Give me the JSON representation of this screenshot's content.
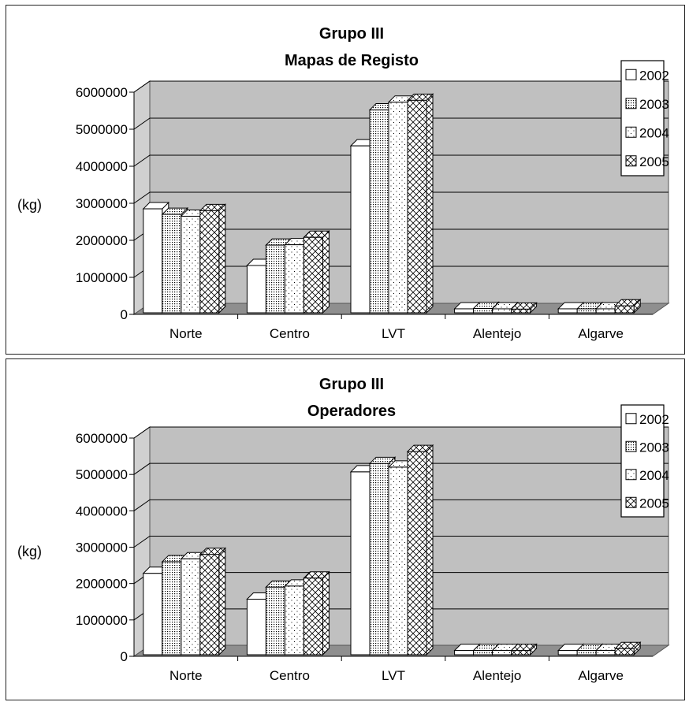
{
  "chart_data": [
    {
      "type": "bar",
      "title": "Grupo III",
      "subtitle": "Mapas de Registo",
      "ylabel": "(kg)",
      "xlabel": "",
      "ylim": [
        0,
        6000000
      ],
      "yticks": [
        "0",
        "1000000",
        "2000000",
        "3000000",
        "4000000",
        "5000000",
        "6000000"
      ],
      "categories": [
        "Norte",
        "Centro",
        "LVT",
        "Alentejo",
        "Algarve"
      ],
      "legend_position": "top-right",
      "grid": true,
      "series": [
        {
          "name": "2002",
          "pattern": "blank",
          "values": [
            2850000,
            1320000,
            4550000,
            150000,
            150000
          ]
        },
        {
          "name": "2003",
          "pattern": "dense-dots",
          "values": [
            2700000,
            1870000,
            5520000,
            160000,
            150000
          ]
        },
        {
          "name": "2004",
          "pattern": "sparse-dots",
          "values": [
            2650000,
            1880000,
            5730000,
            150000,
            150000
          ]
        },
        {
          "name": "2005",
          "pattern": "crosshatch",
          "values": [
            2800000,
            2080000,
            5780000,
            140000,
            230000
          ]
        }
      ]
    },
    {
      "type": "bar",
      "title": "Grupo III",
      "subtitle": "Operadores",
      "ylabel": "(kg)",
      "xlabel": "",
      "ylim": [
        0,
        6000000
      ],
      "yticks": [
        "0",
        "1000000",
        "2000000",
        "3000000",
        "4000000",
        "5000000",
        "6000000"
      ],
      "categories": [
        "Norte",
        "Centro",
        "LVT",
        "Alentejo",
        "Algarve"
      ],
      "legend_position": "top-right",
      "grid": true,
      "series": [
        {
          "name": "2002",
          "pattern": "blank",
          "values": [
            2280000,
            1570000,
            5070000,
            160000,
            160000
          ]
        },
        {
          "name": "2003",
          "pattern": "dense-dots",
          "values": [
            2600000,
            1900000,
            5300000,
            160000,
            160000
          ]
        },
        {
          "name": "2004",
          "pattern": "sparse-dots",
          "values": [
            2680000,
            1930000,
            5200000,
            160000,
            160000
          ]
        },
        {
          "name": "2005",
          "pattern": "crosshatch",
          "values": [
            2800000,
            2150000,
            5630000,
            160000,
            210000
          ]
        }
      ]
    }
  ],
  "colors": {
    "wall": "#c0c0c0",
    "floor": "#8f8f8f",
    "side_wall": "#d0d0d0",
    "bar_face": "#ffffff",
    "outline": "#000000"
  }
}
